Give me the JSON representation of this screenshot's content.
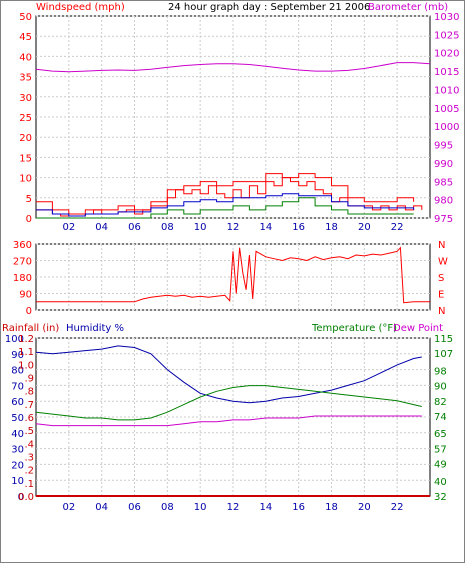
{
  "header": {
    "title": "24 hour graph day : September 21 2006",
    "left_label": "Windspeed (mph)",
    "right_label": "Barometer (mb)"
  },
  "direction_labels": [
    "N",
    "W",
    "S",
    "E",
    "N"
  ],
  "bottom_labels": {
    "rainfall": "Rainfall (in)",
    "humidity": "Humidity %",
    "temperature": "Temperature (°F)",
    "dewpoint": "Dew Point"
  },
  "colors": {
    "windspeed": "#ff0000",
    "gust": "#ff0000",
    "average": "#0000cc",
    "lowwind": "#008000",
    "barometer": "#cc00cc",
    "direction": "#ff0000",
    "humidity": "#0000aa",
    "temperature": "#008000",
    "dewpoint": "#cc00cc",
    "rain": "#cc0000",
    "grid": "#cccccc"
  },
  "chart_data": [
    {
      "type": "line",
      "name_of_panel": "wind_and_barometer",
      "x_ticks": [
        "02",
        "04",
        "06",
        "08",
        "10",
        "12",
        "14",
        "16",
        "18",
        "20",
        "22"
      ],
      "xlim": [
        0,
        24
      ],
      "y_left": {
        "label": "Windspeed (mph)",
        "ylim": [
          0,
          50
        ],
        "ticks": [
          0,
          5,
          10,
          15,
          20,
          25,
          30,
          35,
          40,
          45,
          50
        ]
      },
      "y_right": {
        "label": "Barometer (mb)",
        "ylim": [
          975,
          1030
        ],
        "ticks": [
          975,
          980,
          985,
          990,
          995,
          1000,
          1005,
          1010,
          1015,
          1020,
          1025,
          1030
        ]
      },
      "series": [
        {
          "name": "Barometer",
          "axis": "right",
          "x": [
            0,
            1,
            2,
            3,
            4,
            5,
            6,
            7,
            8,
            9,
            10,
            11,
            12,
            13,
            14,
            15,
            16,
            17,
            18,
            19,
            20,
            21,
            22,
            23,
            24
          ],
          "values": [
            1015.5,
            1015,
            1014.8,
            1015,
            1015.2,
            1015.3,
            1015.2,
            1015.5,
            1016,
            1016.5,
            1016.8,
            1017,
            1017,
            1016.8,
            1016.3,
            1015.8,
            1015.3,
            1015,
            1015,
            1015.2,
            1015.7,
            1016.5,
            1017.3,
            1017.3,
            1017
          ]
        },
        {
          "name": "Windspeed",
          "axis": "left",
          "x": [
            0,
            0.5,
            1,
            1.5,
            2,
            2.5,
            3,
            3.5,
            4,
            4.5,
            5,
            5.5,
            6,
            6.5,
            7,
            7.5,
            8,
            8.5,
            9,
            9.5,
            10,
            10.5,
            11,
            11.5,
            12,
            12.5,
            13,
            13.5,
            14,
            14.5,
            15,
            15.5,
            16,
            16.5,
            17,
            17.5,
            18,
            18.5,
            19,
            19.5,
            20,
            20.5,
            21,
            21.5,
            22,
            22.5,
            23,
            23.5
          ],
          "values": [
            2,
            2,
            1,
            0.5,
            0.5,
            0.5,
            1,
            2,
            1,
            1,
            1.5,
            2,
            1,
            2,
            3,
            3,
            5,
            7,
            6,
            7,
            6,
            8,
            6,
            5,
            7,
            5,
            8,
            6,
            9,
            8,
            10,
            9,
            8,
            9,
            7,
            6,
            4,
            5,
            3,
            3,
            3,
            2,
            3,
            2,
            3,
            2,
            3,
            2
          ]
        },
        {
          "name": "Gust",
          "axis": "left",
          "x": [
            0,
            1,
            2,
            3,
            4,
            5,
            6,
            7,
            8,
            9,
            10,
            11,
            12,
            13,
            14,
            15,
            16,
            17,
            18,
            19,
            20,
            21,
            22,
            23
          ],
          "values": [
            4,
            2,
            1,
            2,
            2,
            3,
            2,
            4,
            7,
            8,
            9,
            8,
            9,
            9,
            11,
            10,
            11,
            10,
            8,
            5,
            4,
            4,
            5,
            4
          ]
        },
        {
          "name": "Average",
          "axis": "left",
          "x": [
            0,
            1,
            2,
            3,
            4,
            5,
            6,
            7,
            8,
            9,
            10,
            11,
            12,
            13,
            14,
            15,
            16,
            17,
            18,
            19,
            20,
            21,
            22,
            23
          ],
          "values": [
            2,
            1,
            0.5,
            1,
            1,
            1.5,
            1.5,
            2.5,
            3,
            4,
            4.5,
            4,
            5,
            5,
            5.5,
            6,
            5.5,
            5.5,
            4,
            3,
            2.5,
            2.5,
            2.5,
            2
          ]
        },
        {
          "name": "Low",
          "axis": "left",
          "x": [
            0,
            1,
            2,
            3,
            4,
            5,
            6,
            7,
            8,
            9,
            10,
            11,
            12,
            13,
            14,
            15,
            16,
            17,
            18,
            19,
            20,
            21,
            22,
            23
          ],
          "values": [
            0,
            0,
            0,
            0,
            0,
            0,
            0,
            1,
            2,
            1,
            2,
            2,
            3,
            2,
            3,
            4,
            5,
            3,
            2,
            1,
            1,
            1,
            1,
            1
          ]
        }
      ]
    },
    {
      "type": "line",
      "name_of_panel": "wind_direction",
      "xlim": [
        0,
        24
      ],
      "ylim": [
        0,
        360
      ],
      "y_ticks": [
        0,
        90,
        180,
        270,
        360
      ],
      "series": [
        {
          "name": "Direction",
          "x": [
            0,
            1,
            2,
            3,
            4,
            5,
            6,
            6.5,
            7,
            7.5,
            8,
            8.5,
            9,
            9.5,
            10,
            10.5,
            11,
            11.5,
            11.8,
            12,
            12.2,
            12.4,
            12.6,
            12.8,
            13,
            13.2,
            13.4,
            13.6,
            14,
            14.5,
            15,
            15.5,
            16,
            16.5,
            17,
            17.5,
            18,
            18.5,
            19,
            19.5,
            20,
            20.5,
            21,
            21.5,
            22,
            22.2,
            22.4,
            23,
            24
          ],
          "values": [
            45,
            45,
            45,
            45,
            45,
            45,
            45,
            60,
            70,
            75,
            80,
            75,
            80,
            70,
            75,
            70,
            75,
            80,
            50,
            320,
            90,
            340,
            200,
            110,
            300,
            60,
            320,
            310,
            290,
            280,
            270,
            285,
            280,
            270,
            290,
            275,
            285,
            290,
            280,
            300,
            295,
            305,
            300,
            310,
            320,
            340,
            40,
            45,
            45
          ]
        }
      ]
    },
    {
      "type": "line",
      "name_of_panel": "humidity_temperature_rain",
      "x_ticks": [
        "02",
        "04",
        "06",
        "08",
        "10",
        "12",
        "14",
        "16",
        "18",
        "20",
        "22"
      ],
      "xlim": [
        0,
        24
      ],
      "y_left_rain": {
        "label": "Rainfall (in)",
        "ylim": [
          0,
          1.2
        ],
        "ticks": [
          0,
          0.1,
          0.2,
          0.3,
          0.4,
          0.5,
          0.6,
          0.7,
          0.8,
          0.9,
          1.0,
          1.1,
          1.2
        ]
      },
      "y_left_humidity": {
        "label": "Humidity %",
        "ylim": [
          0,
          100
        ],
        "ticks": [
          0,
          10,
          20,
          30,
          40,
          50,
          60,
          70,
          80,
          90,
          100
        ]
      },
      "y_right": {
        "label": "Temperature (°F)",
        "ylim": [
          32,
          115
        ],
        "ticks": [
          32,
          40,
          49,
          57,
          65,
          74,
          82,
          90,
          98,
          107,
          115
        ]
      },
      "series": [
        {
          "name": "Humidity",
          "axis": "humidity",
          "x": [
            0,
            1,
            2,
            3,
            4,
            5,
            6,
            7,
            8,
            9,
            10,
            11,
            12,
            13,
            14,
            15,
            16,
            17,
            18,
            19,
            20,
            21,
            22,
            23,
            23.5
          ],
          "values": [
            91,
            90,
            91,
            92,
            93,
            95,
            94,
            90,
            80,
            72,
            65,
            62,
            60,
            59,
            60,
            62,
            63,
            65,
            67,
            70,
            73,
            78,
            83,
            87,
            88
          ]
        },
        {
          "name": "Temperature",
          "axis": "right",
          "x": [
            0,
            1,
            2,
            3,
            4,
            5,
            6,
            7,
            8,
            9,
            10,
            11,
            12,
            13,
            14,
            15,
            16,
            17,
            18,
            19,
            20,
            21,
            22,
            23,
            23.5
          ],
          "values": [
            76,
            75,
            74,
            73,
            73,
            72,
            72,
            73,
            76,
            80,
            84,
            87,
            89,
            90,
            90,
            89,
            88,
            87,
            86,
            85,
            84,
            83,
            82,
            80,
            79
          ]
        },
        {
          "name": "Dew Point",
          "axis": "right",
          "x": [
            0,
            1,
            2,
            3,
            4,
            5,
            6,
            7,
            8,
            9,
            10,
            11,
            12,
            13,
            14,
            15,
            16,
            17,
            18,
            19,
            20,
            21,
            22,
            23,
            23.5
          ],
          "values": [
            70,
            69,
            69,
            69,
            69,
            69,
            69,
            69,
            69,
            70,
            71,
            71,
            72,
            72,
            73,
            73,
            73,
            74,
            74,
            74,
            74,
            74,
            74,
            74,
            74
          ]
        },
        {
          "name": "Rainfall",
          "axis": "rain",
          "x": [
            0,
            24
          ],
          "values": [
            0,
            0
          ]
        }
      ]
    }
  ]
}
